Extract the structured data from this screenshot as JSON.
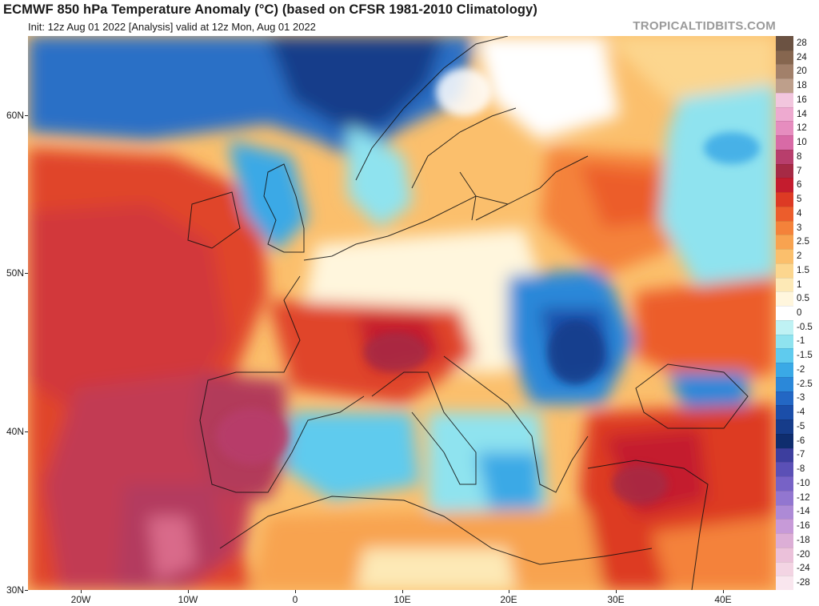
{
  "header": {
    "title": "ECMWF 850 hPa Temperature Anomaly (°C) (based on CFSR 1981-2010 Climatology)",
    "subtitle": "Init: 12z Aug 01 2022  [Analysis]  valid at 12z Mon, Aug 01 2022",
    "brand": "TROPICALTIDBITS.COM"
  },
  "axes": {
    "y_labels": [
      "60N",
      "50N",
      "40N",
      "30N"
    ],
    "x_labels": [
      "20W",
      "10W",
      "0",
      "10E",
      "20E",
      "30E",
      "40E"
    ]
  },
  "colorbar": {
    "levels": [
      {
        "label": "28",
        "color": "#6b5242"
      },
      {
        "label": "24",
        "color": "#86664f"
      },
      {
        "label": "20",
        "color": "#a2806a"
      },
      {
        "label": "18",
        "color": "#be9f8b"
      },
      {
        "label": "16",
        "color": "#f2c6de"
      },
      {
        "label": "14",
        "color": "#eeaad0"
      },
      {
        "label": "12",
        "color": "#e68dbf"
      },
      {
        "label": "10",
        "color": "#d86aa6"
      },
      {
        "label": "8",
        "color": "#b83e6c"
      },
      {
        "label": "7",
        "color": "#a62a45"
      },
      {
        "label": "6",
        "color": "#c41c2e"
      },
      {
        "label": "5",
        "color": "#dd3a24"
      },
      {
        "label": "4",
        "color": "#ec5d2c"
      },
      {
        "label": "3",
        "color": "#f4823a"
      },
      {
        "label": "2.5",
        "color": "#f8a350"
      },
      {
        "label": "2",
        "color": "#fbbf6c"
      },
      {
        "label": "1.5",
        "color": "#fcd68e"
      },
      {
        "label": "1",
        "color": "#fde9b6"
      },
      {
        "label": "0.5",
        "color": "#fff6dd"
      },
      {
        "label": "0",
        "color": "#ffffff"
      },
      {
        "label": "-0.5",
        "color": "#bff2f4"
      },
      {
        "label": "-1",
        "color": "#8fe3ef"
      },
      {
        "label": "-1.5",
        "color": "#5fcbee"
      },
      {
        "label": "-2",
        "color": "#3aa9e6"
      },
      {
        "label": "-2.5",
        "color": "#2b88d9"
      },
      {
        "label": "-3",
        "color": "#2367c4"
      },
      {
        "label": "-4",
        "color": "#1b4ea9"
      },
      {
        "label": "-5",
        "color": "#163c8a"
      },
      {
        "label": "-6",
        "color": "#0f2d6e"
      },
      {
        "label": "-7",
        "color": "#3d3e9e"
      },
      {
        "label": "-8",
        "color": "#5b50b6"
      },
      {
        "label": "-10",
        "color": "#7762c6"
      },
      {
        "label": "-12",
        "color": "#9276d0"
      },
      {
        "label": "-14",
        "color": "#ad8ad6"
      },
      {
        "label": "-16",
        "color": "#c79ad8"
      },
      {
        "label": "-18",
        "color": "#dcaed6"
      },
      {
        "label": "-20",
        "color": "#ebc1da"
      },
      {
        "label": "-24",
        "color": "#f3d4e3"
      },
      {
        "label": "-28",
        "color": "#f9e6ee"
      }
    ]
  },
  "colors": {
    "sea_warm": "#e0452a",
    "warm_core": "#b33b5e",
    "cool_sea": "#2a6fc6",
    "coast": "#111111"
  }
}
